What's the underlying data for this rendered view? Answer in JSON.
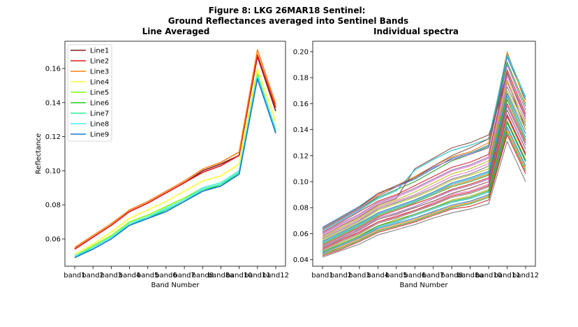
{
  "figure": {
    "title_line1": "Figure 8: LKG 26MAR18  Sentinel:",
    "title_line2": "Ground Reflectances averaged into Sentinel Bands"
  },
  "chart_data": [
    {
      "type": "line",
      "title": "Line Averaged",
      "xlabel": "Band Number",
      "ylabel": "Reflectance",
      "categories": [
        "band1",
        "band2",
        "band3",
        "band4",
        "band5",
        "band6",
        "band7",
        "band8",
        "band8a",
        "band10",
        "band11",
        "band12"
      ],
      "ylim": [
        0.044,
        0.176
      ],
      "yticks": [
        0.06,
        0.08,
        0.1,
        0.12,
        0.14,
        0.16
      ],
      "ytick_labels": [
        "0.06",
        "0.08",
        "0.10",
        "0.12",
        "0.14",
        "0.16"
      ],
      "grid": false,
      "legend": "top-left",
      "series": [
        {
          "name": "Line1",
          "color": "#7f1d1d",
          "values": [
            0.054,
            0.061,
            0.068,
            0.076,
            0.081,
            0.087,
            0.093,
            0.1,
            0.104,
            0.109,
            0.167,
            0.135
          ]
        },
        {
          "name": "Line2",
          "color": "#e31a1c",
          "values": [
            0.054,
            0.061,
            0.068,
            0.076,
            0.081,
            0.087,
            0.093,
            0.099,
            0.103,
            0.109,
            0.168,
            0.137
          ]
        },
        {
          "name": "Line3",
          "color": "#ff7f0e",
          "values": [
            0.055,
            0.062,
            0.069,
            0.077,
            0.082,
            0.088,
            0.094,
            0.101,
            0.105,
            0.111,
            0.171,
            0.139
          ]
        },
        {
          "name": "Line4",
          "color": "#ffff33",
          "values": [
            0.051,
            0.057,
            0.064,
            0.072,
            0.077,
            0.082,
            0.088,
            0.094,
            0.097,
            0.104,
            0.16,
            0.129
          ]
        },
        {
          "name": "Line5",
          "color": "#7fff00",
          "values": [
            0.05,
            0.056,
            0.062,
            0.07,
            0.074,
            0.079,
            0.084,
            0.09,
            0.093,
            0.1,
            0.157,
            0.124
          ]
        },
        {
          "name": "Line6",
          "color": "#22cc22",
          "values": [
            0.049,
            0.055,
            0.061,
            0.068,
            0.072,
            0.077,
            0.082,
            0.088,
            0.092,
            0.098,
            0.155,
            0.123
          ]
        },
        {
          "name": "Line7",
          "color": "#33ee99",
          "values": [
            0.049,
            0.055,
            0.061,
            0.068,
            0.073,
            0.077,
            0.082,
            0.089,
            0.092,
            0.099,
            0.155,
            0.123
          ]
        },
        {
          "name": "Line8",
          "color": "#44eeee",
          "values": [
            0.05,
            0.055,
            0.061,
            0.069,
            0.073,
            0.078,
            0.083,
            0.09,
            0.093,
            0.1,
            0.156,
            0.124
          ]
        },
        {
          "name": "Line9",
          "color": "#1f77d4",
          "values": [
            0.049,
            0.054,
            0.06,
            0.068,
            0.072,
            0.076,
            0.082,
            0.088,
            0.091,
            0.098,
            0.154,
            0.122
          ]
        }
      ]
    },
    {
      "type": "line",
      "title": "Individual spectra",
      "xlabel": "Band Number",
      "ylabel": "",
      "categories": [
        "band1",
        "band2",
        "band3",
        "band4",
        "band5",
        "band6",
        "band7",
        "band8",
        "band8a",
        "band10",
        "band11",
        "band12"
      ],
      "ylim": [
        0.035,
        0.208
      ],
      "yticks": [
        0.04,
        0.06,
        0.08,
        0.1,
        0.12,
        0.14,
        0.16,
        0.18,
        0.2
      ],
      "ytick_labels": [
        "0.04",
        "0.06",
        "0.08",
        "0.10",
        "0.12",
        "0.14",
        "0.16",
        "0.18",
        "0.20"
      ],
      "grid": false,
      "legend": "none",
      "series": [
        {
          "color": "#1f77b4",
          "values": [
            0.065,
            0.073,
            0.081,
            0.091,
            0.096,
            0.102,
            0.11,
            0.118,
            0.122,
            0.128,
            0.196,
            0.163
          ]
        },
        {
          "color": "#ff7f0e",
          "values": [
            0.064,
            0.072,
            0.08,
            0.09,
            0.097,
            0.104,
            0.112,
            0.119,
            0.123,
            0.13,
            0.2,
            0.16
          ]
        },
        {
          "color": "#2ca02c",
          "values": [
            0.063,
            0.071,
            0.079,
            0.088,
            0.094,
            0.1,
            0.108,
            0.116,
            0.121,
            0.127,
            0.192,
            0.158
          ]
        },
        {
          "color": "#d62728",
          "values": [
            0.061,
            0.069,
            0.077,
            0.085,
            0.09,
            0.097,
            0.104,
            0.111,
            0.115,
            0.121,
            0.186,
            0.152
          ]
        },
        {
          "color": "#9467bd",
          "values": [
            0.06,
            0.068,
            0.075,
            0.084,
            0.089,
            0.095,
            0.102,
            0.109,
            0.113,
            0.119,
            0.183,
            0.15
          ]
        },
        {
          "color": "#8c564b",
          "values": [
            0.058,
            0.066,
            0.073,
            0.082,
            0.087,
            0.11,
            0.118,
            0.126,
            0.13,
            0.136,
            0.178,
            0.14
          ]
        },
        {
          "color": "#e377c2",
          "values": [
            0.057,
            0.064,
            0.071,
            0.08,
            0.085,
            0.09,
            0.097,
            0.104,
            0.108,
            0.114,
            0.176,
            0.146
          ]
        },
        {
          "color": "#7f7f7f",
          "values": [
            0.056,
            0.063,
            0.07,
            0.079,
            0.084,
            0.089,
            0.095,
            0.102,
            0.106,
            0.112,
            0.173,
            0.143
          ]
        },
        {
          "color": "#bcbd22",
          "values": [
            0.055,
            0.062,
            0.069,
            0.078,
            0.083,
            0.088,
            0.094,
            0.101,
            0.105,
            0.11,
            0.17,
            0.14
          ]
        },
        {
          "color": "#17becf",
          "values": [
            0.062,
            0.07,
            0.078,
            0.087,
            0.093,
            0.109,
            0.117,
            0.124,
            0.128,
            0.133,
            0.198,
            0.165
          ]
        },
        {
          "color": "#1f77b4",
          "values": [
            0.054,
            0.061,
            0.068,
            0.076,
            0.081,
            0.086,
            0.092,
            0.099,
            0.103,
            0.108,
            0.168,
            0.137
          ]
        },
        {
          "color": "#ff7f0e",
          "values": [
            0.053,
            0.06,
            0.067,
            0.075,
            0.08,
            0.085,
            0.091,
            0.097,
            0.101,
            0.106,
            0.165,
            0.134
          ]
        },
        {
          "color": "#2ca02c",
          "values": [
            0.052,
            0.059,
            0.066,
            0.074,
            0.079,
            0.084,
            0.09,
            0.096,
            0.1,
            0.105,
            0.163,
            0.132
          ]
        },
        {
          "color": "#d62728",
          "values": [
            0.051,
            0.058,
            0.065,
            0.073,
            0.078,
            0.083,
            0.088,
            0.094,
            0.098,
            0.103,
            0.16,
            0.13
          ]
        },
        {
          "color": "#9467bd",
          "values": [
            0.05,
            0.057,
            0.064,
            0.072,
            0.076,
            0.081,
            0.087,
            0.093,
            0.097,
            0.102,
            0.158,
            0.128
          ]
        },
        {
          "color": "#8c564b",
          "values": [
            0.049,
            0.056,
            0.063,
            0.071,
            0.075,
            0.08,
            0.085,
            0.091,
            0.095,
            0.1,
            0.155,
            0.125
          ]
        },
        {
          "color": "#e377c2",
          "values": [
            0.048,
            0.055,
            0.062,
            0.069,
            0.074,
            0.078,
            0.084,
            0.09,
            0.093,
            0.098,
            0.152,
            0.122
          ]
        },
        {
          "color": "#7f7f7f",
          "values": [
            0.047,
            0.054,
            0.06,
            0.068,
            0.072,
            0.077,
            0.082,
            0.088,
            0.091,
            0.096,
            0.15,
            0.12
          ]
        },
        {
          "color": "#bcbd22",
          "values": [
            0.046,
            0.053,
            0.059,
            0.066,
            0.071,
            0.075,
            0.08,
            0.086,
            0.089,
            0.094,
            0.147,
            0.117
          ]
        },
        {
          "color": "#17becf",
          "values": [
            0.046,
            0.052,
            0.058,
            0.065,
            0.069,
            0.074,
            0.079,
            0.084,
            0.087,
            0.092,
            0.145,
            0.115
          ]
        },
        {
          "color": "#1f77b4",
          "values": [
            0.045,
            0.051,
            0.057,
            0.064,
            0.068,
            0.072,
            0.077,
            0.082,
            0.085,
            0.09,
            0.142,
            0.112
          ]
        },
        {
          "color": "#ff7f0e",
          "values": [
            0.044,
            0.05,
            0.056,
            0.063,
            0.067,
            0.071,
            0.076,
            0.081,
            0.084,
            0.089,
            0.14,
            0.11
          ]
        },
        {
          "color": "#2ca02c",
          "values": [
            0.044,
            0.049,
            0.055,
            0.062,
            0.066,
            0.07,
            0.075,
            0.08,
            0.083,
            0.088,
            0.138,
            0.108
          ]
        },
        {
          "color": "#d62728",
          "values": [
            0.043,
            0.048,
            0.054,
            0.061,
            0.065,
            0.069,
            0.074,
            0.079,
            0.081,
            0.086,
            0.136,
            0.106
          ]
        },
        {
          "color": "#7f7f7f",
          "values": [
            0.042,
            0.047,
            0.052,
            0.059,
            0.063,
            0.067,
            0.072,
            0.076,
            0.079,
            0.083,
            0.131,
            0.1
          ]
        },
        {
          "color": "#9467bd",
          "values": [
            0.063,
            0.071,
            0.079,
            0.089,
            0.096,
            0.103,
            0.111,
            0.117,
            0.121,
            0.126,
            0.19,
            0.155
          ]
        },
        {
          "color": "#8c564b",
          "values": [
            0.064,
            0.072,
            0.08,
            0.091,
            0.097,
            0.103,
            0.112,
            0.12,
            0.126,
            0.133,
            0.184,
            0.148
          ]
        },
        {
          "color": "#e377c2",
          "values": [
            0.059,
            0.067,
            0.074,
            0.083,
            0.088,
            0.094,
            0.101,
            0.108,
            0.112,
            0.118,
            0.181,
            0.148
          ]
        },
        {
          "color": "#bcbd22",
          "values": [
            0.057,
            0.065,
            0.072,
            0.081,
            0.086,
            0.092,
            0.099,
            0.106,
            0.11,
            0.116,
            0.178,
            0.145
          ]
        },
        {
          "color": "#17becf",
          "values": [
            0.053,
            0.06,
            0.067,
            0.075,
            0.08,
            0.085,
            0.091,
            0.098,
            0.102,
            0.107,
            0.166,
            0.134
          ]
        },
        {
          "color": "#d62728",
          "values": [
            0.048,
            0.055,
            0.061,
            0.069,
            0.073,
            0.078,
            0.083,
            0.089,
            0.092,
            0.097,
            0.151,
            0.121
          ]
        },
        {
          "color": "#2ca02c",
          "values": [
            0.046,
            0.052,
            0.058,
            0.066,
            0.07,
            0.075,
            0.08,
            0.085,
            0.088,
            0.093,
            0.146,
            0.116
          ]
        }
      ]
    }
  ]
}
